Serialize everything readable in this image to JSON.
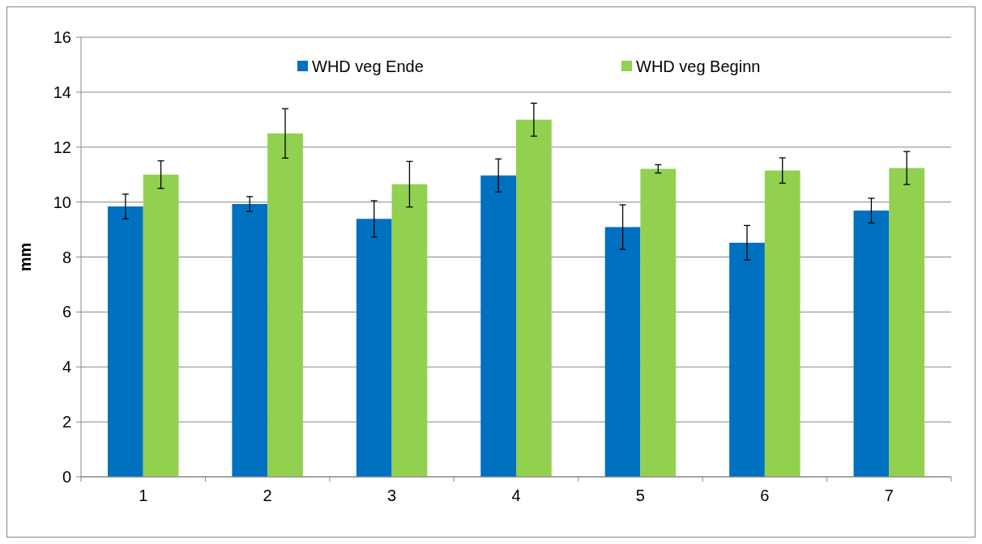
{
  "chart_data": {
    "type": "bar",
    "ylabel": "mm",
    "categories": [
      "1",
      "2",
      "3",
      "4",
      "5",
      "6",
      "7"
    ],
    "series": [
      {
        "name": "WHD veg Ende",
        "color": "#0070c0",
        "values": [
          9.84,
          9.93,
          9.39,
          10.97,
          9.09,
          8.52,
          9.69
        ],
        "errors": [
          0.45,
          0.27,
          0.66,
          0.6,
          0.81,
          0.63,
          0.45
        ]
      },
      {
        "name": "WHD veg Beginn",
        "color": "#92d050",
        "values": [
          11.0,
          12.5,
          10.65,
          13.0,
          11.21,
          11.15,
          11.24
        ],
        "errors": [
          0.5,
          0.9,
          0.83,
          0.6,
          0.15,
          0.46,
          0.6
        ]
      }
    ],
    "ylim": [
      0,
      16
    ],
    "yticks": [
      0,
      2,
      4,
      6,
      8,
      10,
      12,
      14,
      16
    ],
    "grid": "y",
    "legend": "top"
  }
}
